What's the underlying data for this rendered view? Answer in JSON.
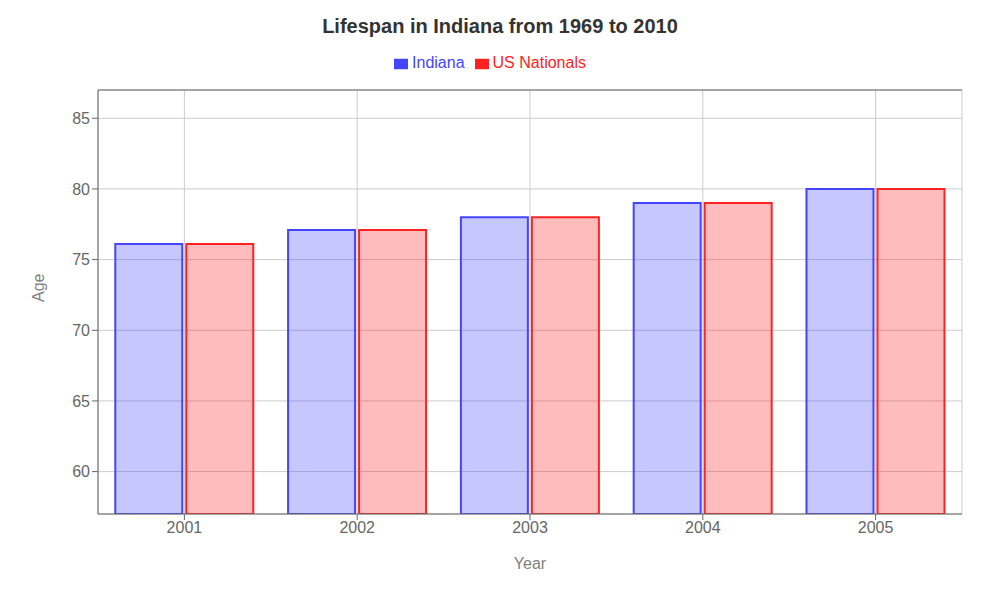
{
  "chart_data": {
    "type": "bar",
    "title": "Lifespan in Indiana from 1969 to 2010",
    "xlabel": "Year",
    "ylabel": "Age",
    "categories": [
      "2001",
      "2002",
      "2003",
      "2004",
      "2005"
    ],
    "series": [
      {
        "name": "Indiana",
        "color": "#4444ff",
        "values": [
          76.1,
          77.1,
          78.0,
          79.0,
          80.0
        ]
      },
      {
        "name": "US Nationals",
        "color": "#ff2222",
        "values": [
          76.1,
          77.1,
          78.0,
          79.0,
          80.0
        ]
      }
    ],
    "ylim": [
      57,
      87
    ],
    "yticks": [
      60,
      65,
      70,
      75,
      80,
      85
    ],
    "grid": true,
    "legend": "top"
  }
}
